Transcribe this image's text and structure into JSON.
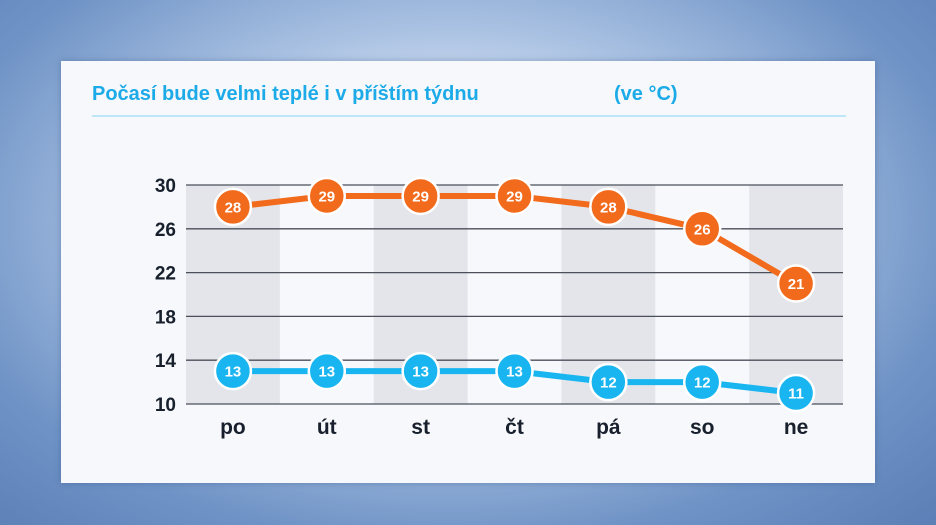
{
  "header": {
    "title": "Počasí bude velmi teplé i v příštím týdnu",
    "unit": "(ve °C)"
  },
  "colors": {
    "title": "#1cabe8",
    "max_series": "#f26a1b",
    "min_series": "#19b5f0",
    "panel_bg": "#f7f8fb",
    "band_bg": "#e3e5ea"
  },
  "chart_data": {
    "type": "line",
    "title": "Počasí bude velmi teplé i v příštím týdnu",
    "categories": [
      "po",
      "út",
      "st",
      "čt",
      "pá",
      "so",
      "ne"
    ],
    "series": [
      {
        "values": [
          28,
          29,
          29,
          29,
          28,
          26,
          21
        ],
        "color": "#f26a1b"
      },
      {
        "values": [
          13,
          13,
          13,
          13,
          12,
          12,
          11
        ],
        "color": "#19b5f0"
      }
    ],
    "yticks": [
      10,
      14,
      18,
      22,
      26,
      30
    ],
    "ylim": [
      10,
      30
    ],
    "grid": true,
    "data_labels": true
  }
}
